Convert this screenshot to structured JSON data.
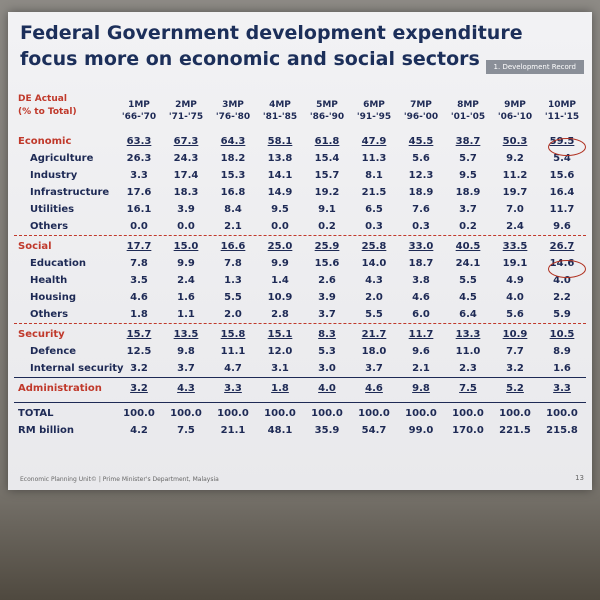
{
  "slide": {
    "title": [
      "Federal Government development expenditure",
      "focus more on economic and social sectors …."
    ],
    "tag": "1. Development Record",
    "table": {
      "header_label": [
        "DE Actual",
        "(% to Total)"
      ],
      "columns": [
        {
          "plan": "1MP",
          "period": "'66-'70"
        },
        {
          "plan": "2MP",
          "period": "'71-'75"
        },
        {
          "plan": "3MP",
          "period": "'76-'80"
        },
        {
          "plan": "4MP",
          "period": "'81-'85"
        },
        {
          "plan": "5MP",
          "period": "'86-'90"
        },
        {
          "plan": "6MP",
          "period": "'91-'95"
        },
        {
          "plan": "7MP",
          "period": "'96-'00"
        },
        {
          "plan": "8MP",
          "period": "'01-'05"
        },
        {
          "plan": "9MP",
          "period": "'06-'10"
        },
        {
          "plan": "10MP",
          "period": "'11-'15"
        }
      ],
      "sections": [
        {
          "label": "Economic",
          "values": [
            "63.3",
            "67.3",
            "64.3",
            "58.1",
            "61.8",
            "47.9",
            "45.5",
            "38.7",
            "50.3",
            "59.5"
          ],
          "items": [
            {
              "label": "Agriculture",
              "values": [
                "26.3",
                "24.3",
                "18.2",
                "13.8",
                "15.4",
                "11.3",
                "5.6",
                "5.7",
                "9.2",
                "5.4"
              ]
            },
            {
              "label": "Industry",
              "values": [
                "3.3",
                "17.4",
                "15.3",
                "14.1",
                "15.7",
                "8.1",
                "12.3",
                "9.5",
                "11.2",
                "15.6"
              ]
            },
            {
              "label": "Infrastructure",
              "values": [
                "17.6",
                "18.3",
                "16.8",
                "14.9",
                "19.2",
                "21.5",
                "18.9",
                "18.9",
                "19.7",
                "16.4"
              ]
            },
            {
              "label": "Utilities",
              "values": [
                "16.1",
                "3.9",
                "8.4",
                "9.5",
                "9.1",
                "6.5",
                "7.6",
                "3.7",
                "7.0",
                "11.7"
              ]
            },
            {
              "label": "Others",
              "values": [
                "0.0",
                "0.0",
                "2.1",
                "0.0",
                "0.2",
                "0.3",
                "0.3",
                "0.2",
                "2.4",
                "9.6"
              ]
            }
          ]
        },
        {
          "label": "Social",
          "values": [
            "17.7",
            "15.0",
            "16.6",
            "25.0",
            "25.9",
            "25.8",
            "33.0",
            "40.5",
            "33.5",
            "26.7"
          ],
          "items": [
            {
              "label": "Education",
              "values": [
                "7.8",
                "9.9",
                "7.8",
                "9.9",
                "15.6",
                "14.0",
                "18.7",
                "24.1",
                "19.1",
                "14.6"
              ]
            },
            {
              "label": "Health",
              "values": [
                "3.5",
                "2.4",
                "1.3",
                "1.4",
                "2.6",
                "4.3",
                "3.8",
                "5.5",
                "4.9",
                "4.0"
              ]
            },
            {
              "label": "Housing",
              "values": [
                "4.6",
                "1.6",
                "5.5",
                "10.9",
                "3.9",
                "2.0",
                "4.6",
                "4.5",
                "4.0",
                "2.2"
              ]
            },
            {
              "label": "Others",
              "values": [
                "1.8",
                "1.1",
                "2.0",
                "2.8",
                "3.7",
                "5.5",
                "6.0",
                "6.4",
                "5.6",
                "5.9"
              ]
            }
          ]
        },
        {
          "label": "Security",
          "values": [
            "15.7",
            "13.5",
            "15.8",
            "15.1",
            "8.3",
            "21.7",
            "11.7",
            "13.3",
            "10.9",
            "10.5"
          ],
          "items": [
            {
              "label": "Defence",
              "values": [
                "12.5",
                "9.8",
                "11.1",
                "12.0",
                "5.3",
                "18.0",
                "9.6",
                "11.0",
                "7.7",
                "8.9"
              ]
            },
            {
              "label": "Internal security",
              "values": [
                "3.2",
                "3.7",
                "4.7",
                "3.1",
                "3.0",
                "3.7",
                "2.1",
                "2.3",
                "3.2",
                "1.6"
              ]
            }
          ]
        },
        {
          "label": "Administration",
          "values": [
            "3.2",
            "4.3",
            "3.3",
            "1.8",
            "4.0",
            "4.6",
            "9.8",
            "7.5",
            "5.2",
            "3.3"
          ],
          "items": []
        }
      ],
      "totals": [
        {
          "label": "TOTAL",
          "values": [
            "100.0",
            "100.0",
            "100.0",
            "100.0",
            "100.0",
            "100.0",
            "100.0",
            "100.0",
            "100.0",
            "100.0"
          ]
        },
        {
          "label": "RM billion",
          "values": [
            "4.2",
            "7.5",
            "21.1",
            "48.1",
            "35.9",
            "54.7",
            "99.0",
            "170.0",
            "221.5",
            "215.8"
          ]
        }
      ]
    },
    "footer": "Economic Planning Unit© | Prime Minister's Department, Malaysia",
    "page": "13"
  }
}
